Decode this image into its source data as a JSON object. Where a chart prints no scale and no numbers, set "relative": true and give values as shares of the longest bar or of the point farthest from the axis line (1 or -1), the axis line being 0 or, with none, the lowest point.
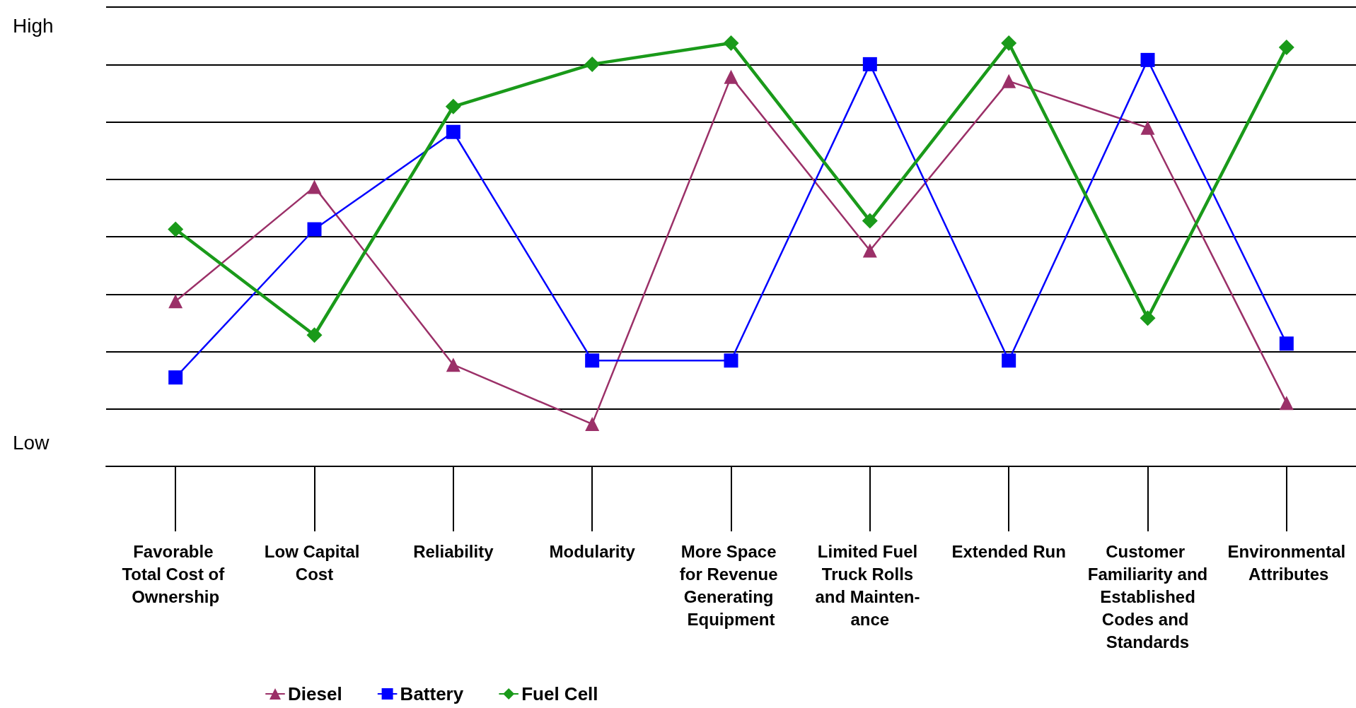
{
  "chart_data": {
    "type": "line",
    "relative": true,
    "grid": "y",
    "legend": "bottom",
    "annotations": [
      "High",
      "Low"
    ],
    "categories": [
      "Favorable Total Cost of Ownership",
      "Low Capital Cost",
      "Reliability",
      "Modularity",
      "More Space for Revenue Generating Equipment",
      "Limited Fuel Truck Rolls and Mainten- ance",
      "Extended Run",
      "Customer Familiarity and Established Codes and Standards",
      "Environmental Attributes"
    ],
    "series": [
      {
        "name": "Diesel",
        "color": "#9b3068",
        "marker": "triangle",
        "values": [
          0.39,
          0.66,
          0.24,
          0.1,
          0.92,
          0.51,
          0.91,
          0.8,
          0.15
        ]
      },
      {
        "name": "Battery",
        "color": "#0000ff",
        "marker": "square",
        "values": [
          0.21,
          0.56,
          0.79,
          0.25,
          0.25,
          0.95,
          0.25,
          0.96,
          0.29
        ]
      },
      {
        "name": "Fuel Cell",
        "color": "#1a9a1a",
        "marker": "diamond",
        "values": [
          0.56,
          0.31,
          0.85,
          0.95,
          1,
          0.58,
          1,
          0.35,
          0.99
        ]
      }
    ]
  }
}
